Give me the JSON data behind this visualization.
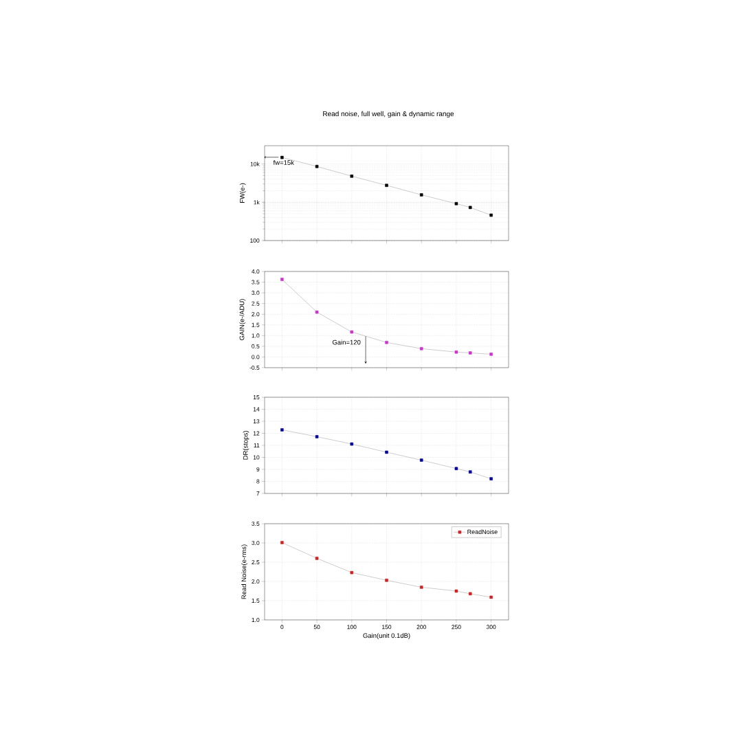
{
  "chart_data": [
    {
      "type": "line",
      "title": "Read noise, full well, gain & dynamic range",
      "ylabel": "FW(e-)",
      "log": "y",
      "grid": true,
      "marker": "square",
      "line_style": "solid",
      "tick_labels": "y",
      "x": [
        0,
        50,
        100,
        150,
        200,
        250,
        270,
        300
      ],
      "xlim": [
        -25,
        325
      ],
      "xticks": [
        0,
        50,
        100,
        150,
        200,
        250,
        300
      ],
      "ylim": [
        100,
        30000
      ],
      "yticks": [
        100,
        {
          "value": 1000,
          "label": "1k"
        },
        {
          "value": 10000,
          "label": "10k"
        }
      ],
      "series": [
        {
          "color": "#000000",
          "values": [
            14800,
            8600,
            4800,
            2760,
            1560,
            920,
            730,
            460
          ]
        }
      ],
      "annotations": [
        {
          "text": "fw=15k",
          "x": 0,
          "y": 15000
        }
      ]
    },
    {
      "type": "line",
      "ylabel": "GAIN(e-/ADU)",
      "grid": true,
      "marker": "square",
      "line_style": "solid",
      "tick_labels": "y",
      "x": [
        0,
        50,
        100,
        150,
        200,
        250,
        270,
        300
      ],
      "xlim": [
        -25,
        325
      ],
      "xticks": [
        0,
        50,
        100,
        150,
        200,
        250,
        300
      ],
      "ylim": [
        -0.5,
        4.0
      ],
      "yticks": [
        -0.5,
        {
          "value": 0,
          "label": "0.0"
        },
        0.5,
        {
          "value": 1,
          "label": "1.0"
        },
        1.5,
        {
          "value": 2,
          "label": "2.0"
        },
        2.5,
        {
          "value": 3,
          "label": "3.0"
        },
        3.5,
        {
          "value": 4,
          "label": "4.0"
        }
      ],
      "series": [
        {
          "color": "#cc33cc",
          "values": [
            3.63,
            2.1,
            1.17,
            0.68,
            0.39,
            0.23,
            0.19,
            0.13
          ]
        }
      ],
      "annotations": [
        {
          "text": "Gain=120",
          "x": 120,
          "y": 0.97
        }
      ]
    },
    {
      "type": "line",
      "ylabel": "DR(stops)",
      "grid": true,
      "marker": "square",
      "line_style": "solid",
      "tick_labels": "y",
      "x": [
        0,
        50,
        100,
        150,
        200,
        250,
        270,
        300
      ],
      "xlim": [
        -25,
        325
      ],
      "xticks": [
        0,
        50,
        100,
        150,
        200,
        250,
        300
      ],
      "ylim": [
        7,
        15
      ],
      "yticks": [
        7,
        8,
        9,
        10,
        11,
        12,
        13,
        14,
        15
      ],
      "series": [
        {
          "color": "#000099",
          "values": [
            12.29,
            11.72,
            11.11,
            10.43,
            9.77,
            9.07,
            8.79,
            8.22
          ]
        }
      ]
    },
    {
      "type": "line",
      "xlabel": "Gain(unit 0.1dB)",
      "ylabel": "Read Noise(e-rms)",
      "grid": true,
      "marker": "square",
      "line_style": "solid",
      "legend": "top right",
      "x": [
        0,
        50,
        100,
        150,
        200,
        250,
        270,
        300
      ],
      "xlim": [
        -25,
        325
      ],
      "xticks": [
        0,
        50,
        100,
        150,
        200,
        250,
        300
      ],
      "ylim": [
        1.0,
        3.5
      ],
      "yticks": [
        {
          "value": 1,
          "label": "1.0"
        },
        1.5,
        {
          "value": 2,
          "label": "2.0"
        },
        2.5,
        {
          "value": 3,
          "label": "3.0"
        },
        3.5
      ],
      "series": [
        {
          "name": "ReadNoise",
          "color": "#cc2222",
          "values": [
            3.01,
            2.6,
            2.23,
            2.03,
            1.85,
            1.75,
            1.68,
            1.59
          ]
        }
      ]
    }
  ]
}
